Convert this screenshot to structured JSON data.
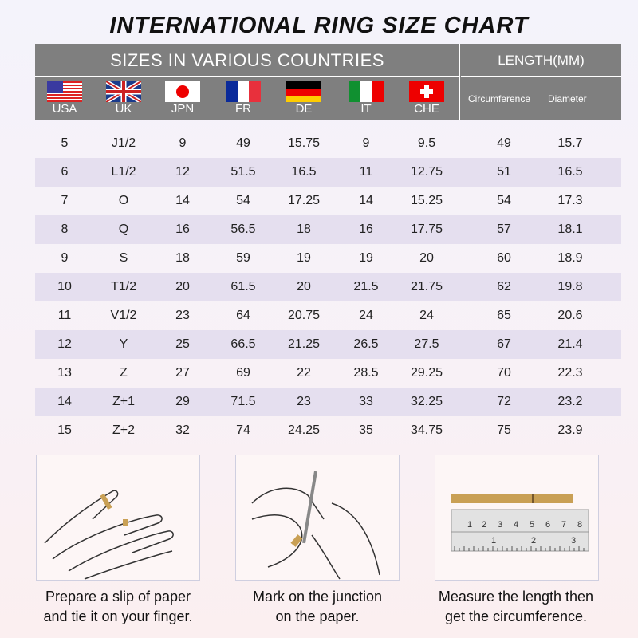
{
  "title": "INTERNATIONAL RING SIZE CHART",
  "header": {
    "countries_label": "SIZES IN VARIOUS COUNTRIES",
    "length_label": "LENGTH(MM)",
    "countries": [
      {
        "code": "USA",
        "flag": "us-flag"
      },
      {
        "code": "UK",
        "flag": "uk-flag"
      },
      {
        "code": "JPN",
        "flag": "japan-flag"
      },
      {
        "code": "FR",
        "flag": "france-flag"
      },
      {
        "code": "DE",
        "flag": "germany-flag"
      },
      {
        "code": "IT",
        "flag": "italy-flag"
      },
      {
        "code": "CHE",
        "flag": "swiss-flag"
      }
    ],
    "circumference_label": "Circumference",
    "diameter_label": "Diameter"
  },
  "rows": [
    [
      "5",
      "J1/2",
      "9",
      "49",
      "15.75",
      "9",
      "9.5",
      "49",
      "15.7"
    ],
    [
      "6",
      "L1/2",
      "12",
      "51.5",
      "16.5",
      "11",
      "12.75",
      "51",
      "16.5"
    ],
    [
      "7",
      "O",
      "14",
      "54",
      "17.25",
      "14",
      "15.25",
      "54",
      "17.3"
    ],
    [
      "8",
      "Q",
      "16",
      "56.5",
      "18",
      "16",
      "17.75",
      "57",
      "18.1"
    ],
    [
      "9",
      "S",
      "18",
      "59",
      "19",
      "19",
      "20",
      "60",
      "18.9"
    ],
    [
      "10",
      "T1/2",
      "20",
      "61.5",
      "20",
      "21.5",
      "21.75",
      "62",
      "19.8"
    ],
    [
      "11",
      "V1/2",
      "23",
      "64",
      "20.75",
      "24",
      "24",
      "65",
      "20.6"
    ],
    [
      "12",
      "Y",
      "25",
      "66.5",
      "21.25",
      "26.5",
      "27.5",
      "67",
      "21.4"
    ],
    [
      "13",
      "Z",
      "27",
      "69",
      "22",
      "28.5",
      "29.25",
      "70",
      "22.3"
    ],
    [
      "14",
      "Z+1",
      "29",
      "71.5",
      "23",
      "33",
      "32.25",
      "72",
      "23.2"
    ],
    [
      "15",
      "Z+2",
      "32",
      "74",
      "24.25",
      "35",
      "34.75",
      "75",
      "23.9"
    ]
  ],
  "colors": {
    "header_bg": "#7f7f7f",
    "alt_row": "#e5dfef",
    "paper": "#c9a055"
  },
  "steps": [
    {
      "line1": "Prepare a slip of paper",
      "line2": "and tie it on your finger."
    },
    {
      "line1": "Mark on the junction",
      "line2": "on the paper."
    },
    {
      "line1": "Measure the length then",
      "line2": "get the circumference."
    }
  ]
}
